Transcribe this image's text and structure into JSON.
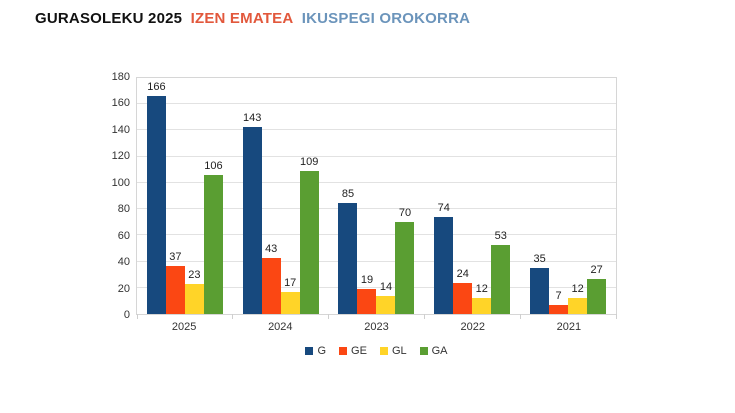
{
  "title": {
    "part1": "GURASOLEKU 2025",
    "part2": "IZEN EMATEA",
    "part3": "IKUSPEGI OROKORRA"
  },
  "title_colors": {
    "part1": "#111111",
    "part2": "#e2583c",
    "part3": "#6b94bb"
  },
  "chart_data": {
    "type": "bar",
    "title": "",
    "xlabel": "",
    "ylabel": "",
    "categories": [
      "2025",
      "2024",
      "2023",
      "2022",
      "2021"
    ],
    "series": [
      {
        "name": "G",
        "color": "#17497e",
        "values": [
          166,
          143,
          85,
          74,
          35
        ]
      },
      {
        "name": "GE",
        "color": "#fb4713",
        "values": [
          37,
          43,
          19,
          24,
          7
        ]
      },
      {
        "name": "GL",
        "color": "#ffd428",
        "values": [
          23,
          17,
          14,
          12,
          12
        ]
      },
      {
        "name": "GA",
        "color": "#5a9e32",
        "values": [
          106,
          109,
          70,
          53,
          27
        ]
      }
    ],
    "ylim": [
      0,
      180
    ],
    "yticks": [
      0,
      20,
      40,
      60,
      80,
      100,
      120,
      140,
      160,
      180
    ],
    "grid": true,
    "data_labels": true,
    "legend_position": "bottom"
  }
}
